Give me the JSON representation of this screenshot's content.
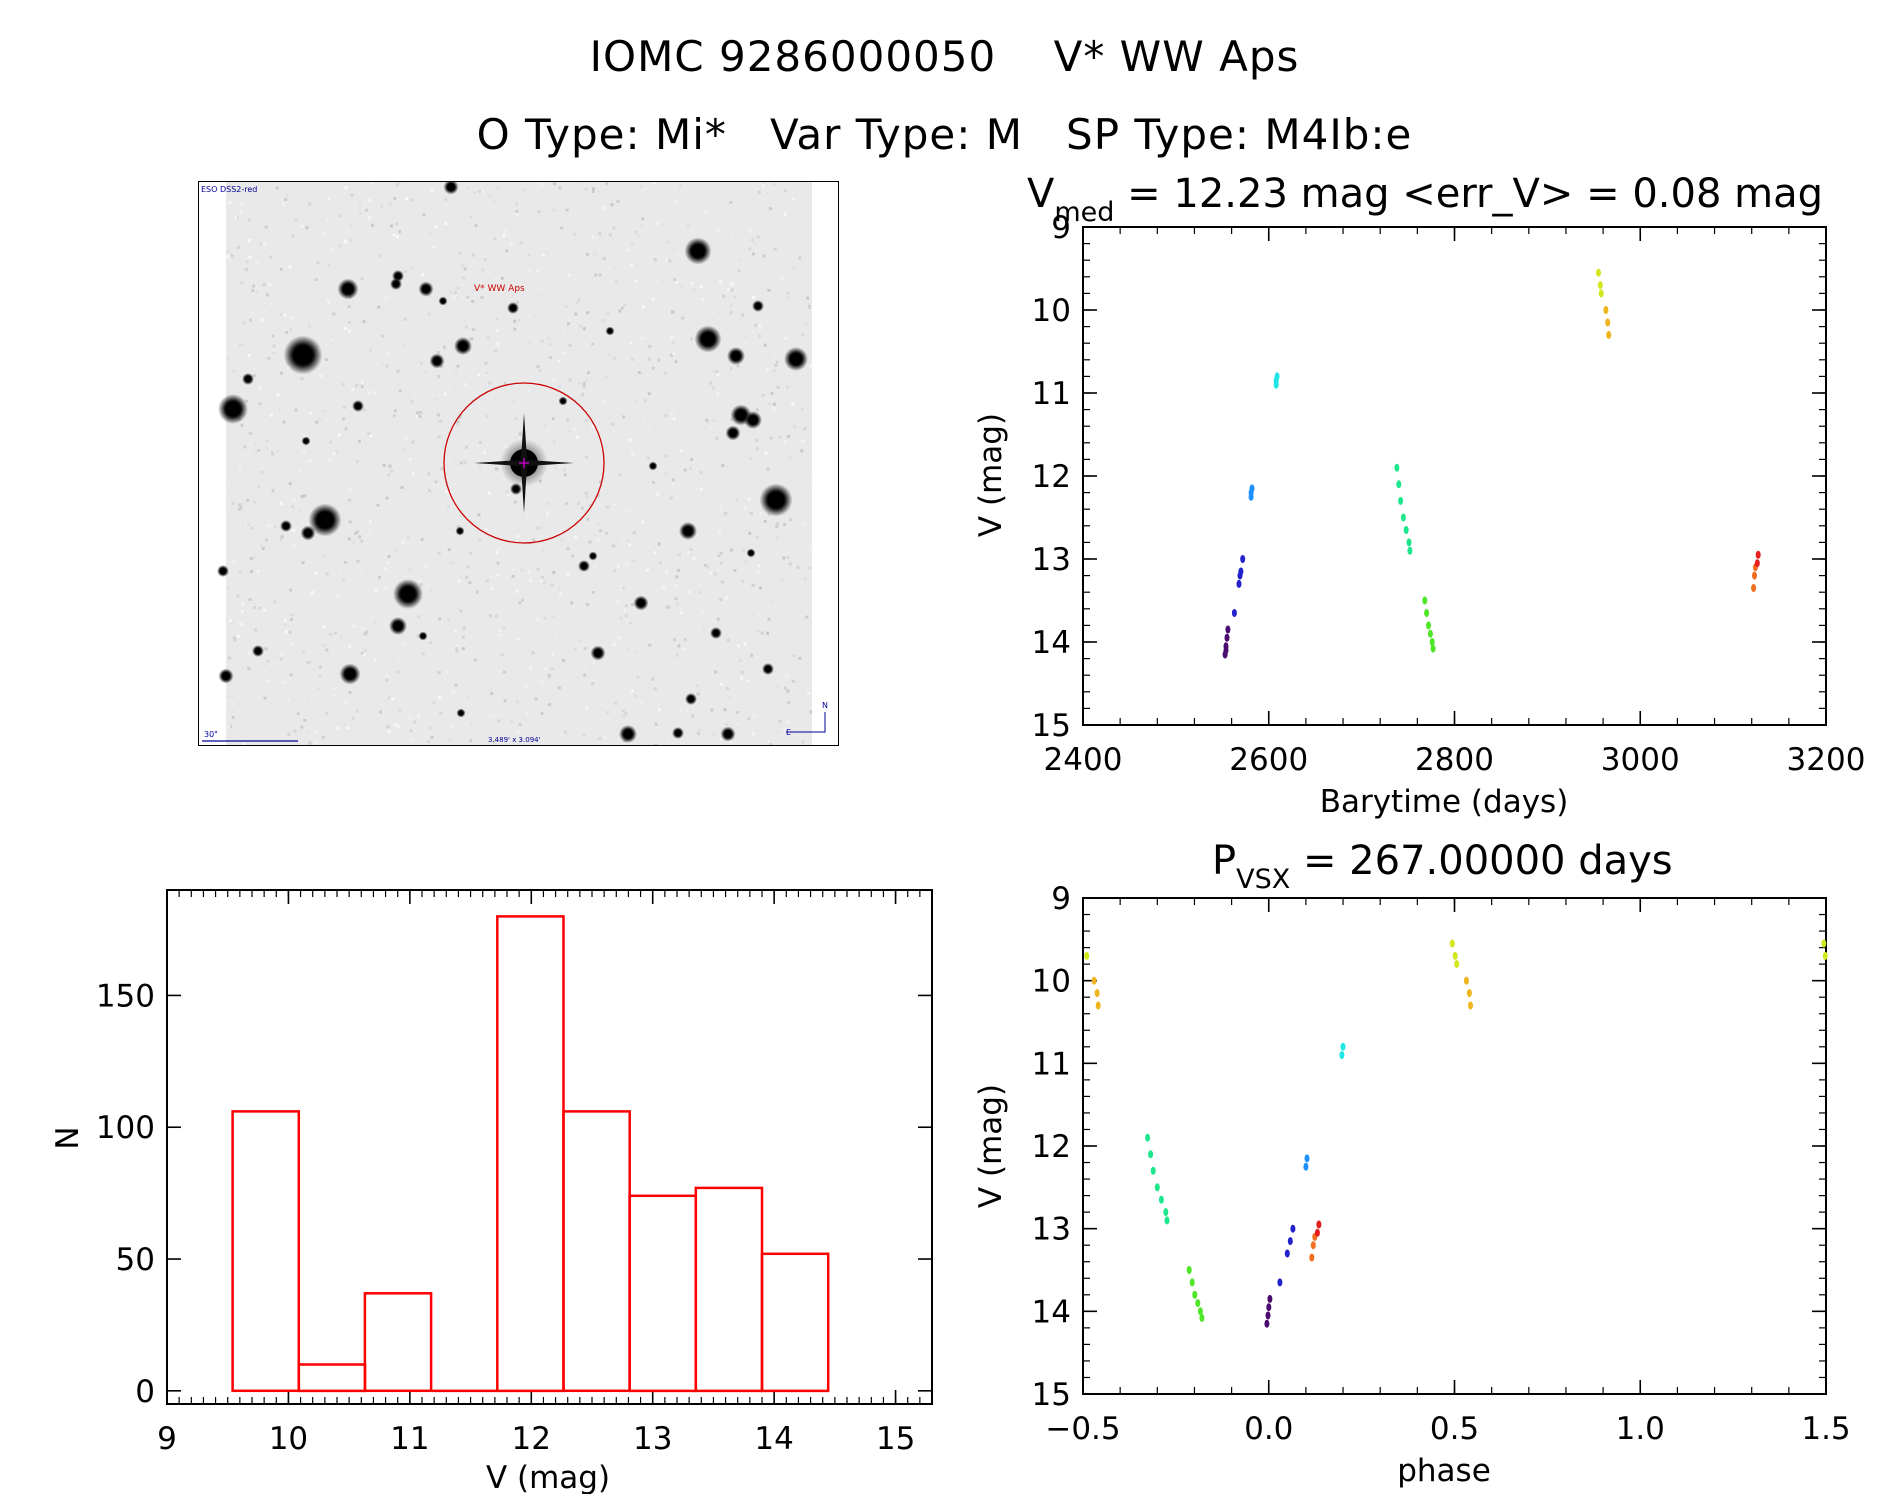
{
  "header": {
    "title": "IOMC 9286000050    V* WW Aps",
    "subtitle": "O Type: Mi*   Var Type: M   SP Type: M4Ib:e"
  },
  "finder": {
    "survey_label": "ESO DSS2-red",
    "target_label": "V* WW Aps",
    "scale_label": "30\"",
    "fov_label": "3.489' x 3.094'",
    "north_label": "N",
    "east_label": "E"
  },
  "colors": {
    "histogram": "#ff0000",
    "target_circle": "#cc0000",
    "finder_text": "#000099"
  },
  "chart_data": [
    {
      "id": "light_curve",
      "type": "scatter",
      "title_main": "V",
      "title_sub": "med",
      "title_rest": " = 12.23 mag <err_V> = 0.08 mag",
      "xlabel": "Barytime (days)",
      "ylabel": "V (mag)",
      "xlim": [
        2400,
        3200
      ],
      "ylim": [
        15,
        9
      ],
      "y_inverted": true,
      "xticks": [
        2400,
        2600,
        2800,
        3000,
        3200
      ],
      "yticks": [
        9,
        10,
        11,
        12,
        13,
        14,
        15
      ],
      "groups": [
        {
          "color": "#4b0a6e",
          "points": [
            [
              2553,
              14.15
            ],
            [
              2554,
              14.05
            ],
            [
              2555,
              13.95
            ],
            [
              2556,
              13.85
            ],
            [
              2554,
              14.1
            ]
          ]
        },
        {
          "color": "#2222cc",
          "points": [
            [
              2563,
              13.65
            ],
            [
              2568,
              13.3
            ],
            [
              2570,
              13.15
            ],
            [
              2572,
              13.0
            ],
            [
              2569,
              13.2
            ]
          ]
        },
        {
          "color": "#1e90ff",
          "points": [
            [
              2581,
              12.25
            ],
            [
              2582,
              12.15
            ],
            [
              2581,
              12.2
            ]
          ]
        },
        {
          "color": "#1ee6e6",
          "points": [
            [
              2608,
              10.9
            ],
            [
              2609,
              10.8
            ],
            [
              2608,
              10.85
            ]
          ]
        },
        {
          "color": "#1ee68c",
          "points": [
            [
              2738,
              11.9
            ],
            [
              2740,
              12.1
            ],
            [
              2742,
              12.3
            ],
            [
              2745,
              12.5
            ],
            [
              2748,
              12.65
            ],
            [
              2751,
              12.8
            ],
            [
              2752,
              12.9
            ]
          ]
        },
        {
          "color": "#50e628",
          "points": [
            [
              2768,
              13.5
            ],
            [
              2770,
              13.65
            ],
            [
              2772,
              13.8
            ],
            [
              2774,
              13.9
            ],
            [
              2776,
              14.0
            ],
            [
              2777,
              14.08
            ]
          ]
        },
        {
          "color": "#d2e61e",
          "points": [
            [
              2955,
              9.55
            ],
            [
              2957,
              9.7
            ],
            [
              2958,
              9.8
            ]
          ]
        },
        {
          "color": "#f0b41e",
          "points": [
            [
              2963,
              10.0
            ],
            [
              2965,
              10.15
            ],
            [
              2966,
              10.3
            ]
          ]
        },
        {
          "color": "#f06e1e",
          "points": [
            [
              3122,
              13.35
            ],
            [
              3123,
              13.2
            ],
            [
              3124,
              13.1
            ]
          ]
        },
        {
          "color": "#e61e1e",
          "points": [
            [
              3126,
              13.05
            ],
            [
              3127,
              12.95
            ]
          ]
        }
      ]
    },
    {
      "id": "histogram",
      "type": "bar",
      "xlabel": "V (mag)",
      "ylabel": "N",
      "xlim": [
        9,
        15.3
      ],
      "ylim": [
        -5,
        190
      ],
      "xticks": [
        9,
        10,
        11,
        12,
        13,
        14,
        15
      ],
      "yticks": [
        0,
        50,
        100,
        150
      ],
      "bin_edges": [
        9.54,
        10.085,
        10.63,
        11.175,
        11.72,
        12.265,
        12.81,
        13.355,
        13.9,
        14.445
      ],
      "counts": [
        106,
        10,
        37,
        0,
        180,
        106,
        74,
        77,
        52
      ]
    },
    {
      "id": "phased",
      "type": "scatter",
      "title_main": "P",
      "title_sub": "VSX",
      "title_rest": " = 267.00000 days",
      "xlabel": "phase",
      "ylabel": "V (mag)",
      "xlim": [
        -0.5,
        1.5
      ],
      "ylim": [
        15,
        9
      ],
      "y_inverted": true,
      "xticks": [
        "-0.5",
        "0.0",
        "0.5",
        "1.0",
        "1.5"
      ],
      "yticks": [
        9,
        10,
        11,
        12,
        13,
        14,
        15
      ],
      "groups": [
        {
          "color": "#4b0a6e",
          "points": [
            [
              -0.005,
              14.15
            ],
            [
              -0.002,
              14.05
            ],
            [
              0.0,
              13.95
            ],
            [
              0.003,
              13.85
            ]
          ]
        },
        {
          "color": "#2222cc",
          "points": [
            [
              0.03,
              13.65
            ],
            [
              0.05,
              13.3
            ],
            [
              0.058,
              13.15
            ],
            [
              0.065,
              13.0
            ]
          ]
        },
        {
          "color": "#1e90ff",
          "points": [
            [
              0.1,
              12.25
            ],
            [
              0.103,
              12.15
            ]
          ]
        },
        {
          "color": "#1ee6e6",
          "points": [
            [
              0.197,
              10.9
            ],
            [
              0.2,
              10.8
            ]
          ]
        },
        {
          "color": "#1ee68c",
          "points": [
            [
              -0.326,
              11.9
            ],
            [
              -0.318,
              12.1
            ],
            [
              -0.311,
              12.3
            ],
            [
              -0.3,
              12.5
            ],
            [
              -0.289,
              12.65
            ],
            [
              -0.277,
              12.8
            ],
            [
              -0.274,
              12.9
            ]
          ]
        },
        {
          "color": "#50e628",
          "points": [
            [
              -0.214,
              13.5
            ],
            [
              -0.206,
              13.65
            ],
            [
              -0.199,
              13.8
            ],
            [
              -0.191,
              13.9
            ],
            [
              -0.184,
              14.0
            ],
            [
              -0.18,
              14.08
            ]
          ]
        },
        {
          "color": "#d2e61e",
          "points": [
            [
              -0.49,
              9.7
            ],
            [
              0.494,
              9.55
            ],
            [
              0.502,
              9.7
            ],
            [
              0.506,
              9.8
            ],
            [
              1.494,
              9.55
            ],
            [
              1.498,
              9.7
            ]
          ]
        },
        {
          "color": "#f0b41e",
          "points": [
            [
              -0.47,
              10.0
            ],
            [
              -0.462,
              10.15
            ],
            [
              -0.459,
              10.3
            ],
            [
              0.532,
              10.0
            ],
            [
              0.54,
              10.15
            ],
            [
              0.543,
              10.3
            ]
          ]
        },
        {
          "color": "#f06e1e",
          "points": [
            [
              0.116,
              13.35
            ],
            [
              0.12,
              13.2
            ],
            [
              0.124,
              13.1
            ]
          ]
        },
        {
          "color": "#e61e1e",
          "points": [
            [
              0.131,
              13.05
            ],
            [
              0.135,
              12.95
            ]
          ]
        }
      ]
    }
  ]
}
